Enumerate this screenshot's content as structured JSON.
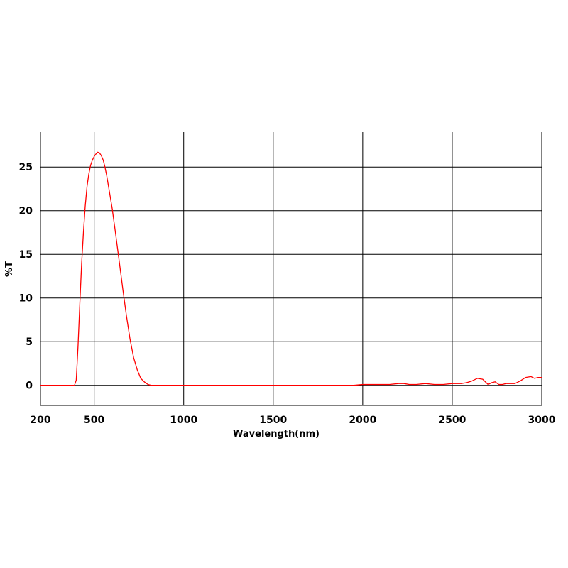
{
  "chart_data": {
    "type": "line",
    "title": "",
    "xlabel": "Wavelength(nm)",
    "ylabel": "%T",
    "xlim": [
      200,
      3000
    ],
    "ylim": [
      -2.3,
      29
    ],
    "x_ticks": [
      200,
      500,
      1000,
      1500,
      2000,
      2500,
      3000
    ],
    "y_ticks": [
      0,
      5,
      10,
      15,
      20,
      25
    ],
    "grid": true,
    "legend": "none",
    "series_color": "#ff0000",
    "series": [
      {
        "x": [
          200,
          300,
          390,
          400,
          410,
          420,
          430,
          440,
          450,
          460,
          470,
          480,
          490,
          500,
          510,
          520,
          530,
          540,
          550,
          560,
          570,
          580,
          600,
          620,
          640,
          660,
          680,
          700,
          720,
          740,
          760,
          780,
          800,
          820,
          840,
          860,
          880,
          900,
          950,
          1000,
          1200,
          1500,
          1800,
          1950,
          2000,
          2100,
          2150,
          2200,
          2230,
          2260,
          2300,
          2350,
          2400,
          2450,
          2500,
          2550,
          2580,
          2610,
          2640,
          2670,
          2700,
          2720,
          2740,
          2760,
          2780,
          2800,
          2850,
          2880,
          2910,
          2940,
          2960,
          2980,
          3000
        ],
        "y": [
          0,
          0,
          0,
          0.6,
          4.5,
          9.5,
          14.0,
          17.5,
          20.5,
          22.8,
          24.2,
          25.2,
          25.8,
          26.2,
          26.5,
          26.7,
          26.6,
          26.3,
          25.8,
          25.0,
          24.0,
          22.8,
          20.3,
          17.3,
          14.2,
          11.0,
          8.0,
          5.3,
          3.2,
          1.8,
          0.8,
          0.4,
          0.1,
          0,
          0,
          0,
          0,
          0,
          0,
          0,
          0,
          0,
          0,
          0,
          0.1,
          0.1,
          0.1,
          0.2,
          0.2,
          0.1,
          0.1,
          0.2,
          0.1,
          0.1,
          0.2,
          0.2,
          0.3,
          0.5,
          0.8,
          0.7,
          0.1,
          0.3,
          0.4,
          0.1,
          0.1,
          0.2,
          0.2,
          0.5,
          0.9,
          1.0,
          0.8,
          0.9,
          0.9
        ]
      }
    ]
  }
}
